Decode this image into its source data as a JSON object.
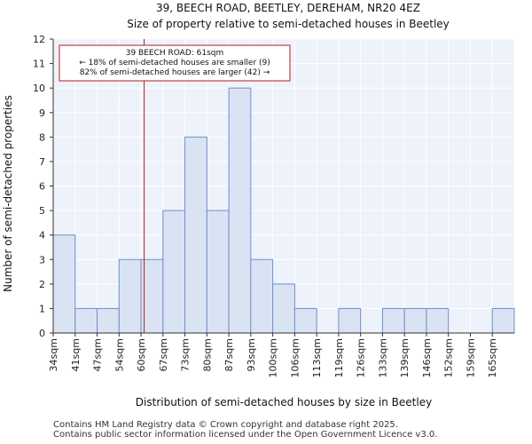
{
  "chart_data": {
    "type": "bar",
    "title": "39, BEECH ROAD, BEETLEY, DEREHAM, NR20 4EZ",
    "subtitle": "Size of property relative to semi-detached houses in Beetley",
    "xlabel": "Distribution of semi-detached houses by size in Beetley",
    "ylabel": "Number of semi-detached properties",
    "categories": [
      "34sqm",
      "41sqm",
      "47sqm",
      "54sqm",
      "60sqm",
      "67sqm",
      "73sqm",
      "80sqm",
      "87sqm",
      "93sqm",
      "100sqm",
      "106sqm",
      "113sqm",
      "119sqm",
      "126sqm",
      "133sqm",
      "139sqm",
      "146sqm",
      "152sqm",
      "159sqm",
      "165sqm"
    ],
    "values": [
      4,
      1,
      1,
      3,
      3,
      5,
      8,
      5,
      10,
      3,
      2,
      1,
      0,
      1,
      0,
      1,
      1,
      1,
      0,
      0,
      1
    ],
    "ylim": [
      0,
      12
    ],
    "yticks": [
      0,
      1,
      2,
      3,
      4,
      5,
      6,
      7,
      8,
      9,
      10,
      11,
      12
    ],
    "grid": true,
    "bar_color": "#dae3f3",
    "bar_edge_color": "#6f8fcf",
    "marker": {
      "value_sqm": 61,
      "color": "#b21f1f",
      "annotation_lines": [
        "39 BEECH ROAD: 61sqm",
        "← 18% of semi-detached houses are smaller (9)",
        "82% of semi-detached houses are larger (42) →"
      ]
    }
  },
  "footer": {
    "line1": "Contains HM Land Registry data © Crown copyright and database right 2025.",
    "line2": "Contains public sector information licensed under the Open Government Licence v3.0."
  }
}
